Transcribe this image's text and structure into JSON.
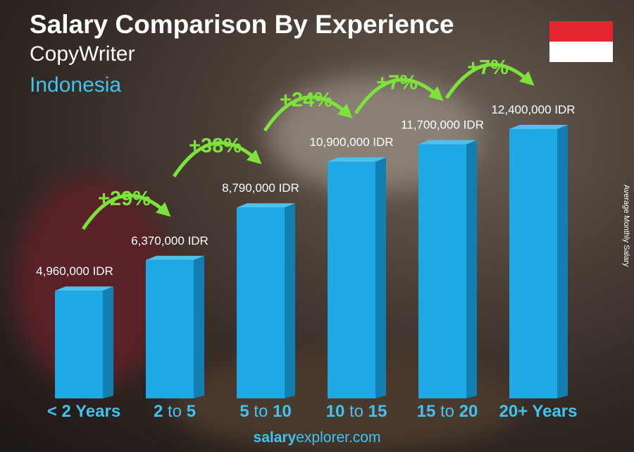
{
  "header": {
    "title": "Salary Comparison By Experience",
    "job": "CopyWriter",
    "country": "Indonesia"
  },
  "flag": {
    "colors": [
      "#e6262e",
      "#ffffff"
    ],
    "name": "indonesia-flag"
  },
  "footer": {
    "bold": "salary",
    "rest": "explorer.com"
  },
  "chart_data": {
    "type": "bar",
    "title": "Salary Comparison By Experience",
    "ylabel": "Average Monthly Salary",
    "categories": [
      "< 2 Years",
      "2 to 5",
      "5 to 10",
      "10 to 15",
      "15 to 20",
      "20+ Years"
    ],
    "category_parts": [
      [
        "< 2 Years",
        "",
        ""
      ],
      [
        "2",
        " to ",
        "5"
      ],
      [
        "5",
        " to ",
        "10"
      ],
      [
        "10",
        " to ",
        "15"
      ],
      [
        "15",
        " to ",
        "20"
      ],
      [
        "20+ Years",
        "",
        ""
      ]
    ],
    "values": [
      4960000,
      6370000,
      8790000,
      10900000,
      11700000,
      12400000
    ],
    "value_labels": [
      "4,960,000 IDR",
      "6,370,000 IDR",
      "8,790,000 IDR",
      "10,900,000 IDR",
      "11,700,000 IDR",
      "12,400,000 IDR"
    ],
    "increases": [
      "+29%",
      "+38%",
      "+24%",
      "+7%",
      "+7%"
    ],
    "unit": "IDR",
    "bar_color": "#1ea8e4",
    "increase_color": "#7de33a",
    "ylim": [
      0,
      12400000
    ],
    "grid": false
  }
}
